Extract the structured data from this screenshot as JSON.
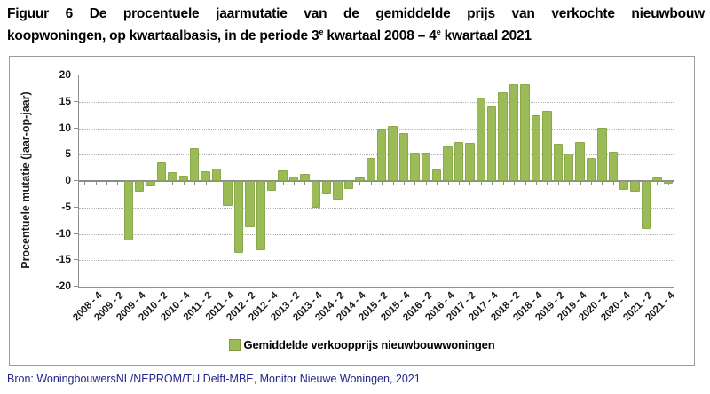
{
  "title": {
    "line1": "Figuur 6 De procentuele jaarmutatie van de gemiddelde prijs van verkochte nieuwbouw",
    "line2_segments": [
      {
        "text": "koopwoningen, op kwartaalbasis, in de periode 3",
        "sup": false
      },
      {
        "text": "e",
        "sup": true
      },
      {
        "text": " kwartaal 2008 – 4",
        "sup": false
      },
      {
        "text": "e",
        "sup": true
      },
      {
        "text": " kwartaal 2021",
        "sup": false
      }
    ]
  },
  "source_note": "Bron: WoningbouwersNL/NEPROM/TU Delft-MBE, Monitor Nieuwe Woningen, 2021",
  "chart_data": {
    "type": "bar",
    "title": "",
    "xlabel": "",
    "ylabel": "Procentuele mutatie (jaar-op-jaar)",
    "ylim": [
      -20,
      20
    ],
    "y_ticks": [
      20,
      15,
      10,
      5,
      0,
      -5,
      -10,
      -15,
      -20
    ],
    "grid": "dotted horizontal at every 5, solid axis at 0",
    "legend_position": "bottom-center",
    "legend_label": "Gemiddelde verkoopprijs nieuwbouwwoningen",
    "bar_color": "#9bbb59",
    "categories": [
      "2008 - 3",
      "2008 - 4",
      "2009 - 1",
      "2009 - 2",
      "2009 - 3",
      "2009 - 4",
      "2010 - 1",
      "2010 - 2",
      "2010 - 3",
      "2010 - 4",
      "2011 - 1",
      "2011 - 2",
      "2011 - 3",
      "2011 - 4",
      "2012 - 1",
      "2012 - 2",
      "2012 - 3",
      "2012 - 4",
      "2013 - 1",
      "2013 - 2",
      "2013 - 3",
      "2013 - 4",
      "2014 - 1",
      "2014 - 2",
      "2014 - 3",
      "2014 - 4",
      "2015 - 1",
      "2015 - 2",
      "2015 - 3",
      "2015 - 4",
      "2016 - 1",
      "2016 - 2",
      "2016 - 3",
      "2016 - 4",
      "2017 - 1",
      "2017 - 2",
      "2017 - 3",
      "2017 - 4",
      "2018 - 1",
      "2018 - 2",
      "2018 - 3",
      "2018 - 4",
      "2019 - 1",
      "2019 - 2",
      "2019 - 3",
      "2019 - 4",
      "2020 - 1",
      "2020 - 2",
      "2020 - 3",
      "2020 - 4",
      "2021 - 1",
      "2021 - 2",
      "2021 - 3",
      "2021 - 4"
    ],
    "values": [
      null,
      null,
      null,
      null,
      -11.2,
      -2.1,
      -1.0,
      3.5,
      1.7,
      1.0,
      6.2,
      1.9,
      2.4,
      -4.7,
      -13.6,
      -8.8,
      -13.1,
      -1.8,
      2.0,
      0.9,
      1.3,
      -5.0,
      -2.5,
      -3.5,
      -1.5,
      0.6,
      4.4,
      10.0,
      10.4,
      9.0,
      5.4,
      5.4,
      2.2,
      6.5,
      7.4,
      7.2,
      15.8,
      14.2,
      16.8,
      18.3,
      18.3,
      12.4,
      13.2,
      7.0,
      5.2,
      7.4,
      4.3,
      10.1,
      5.5,
      -1.6,
      -2.1,
      -9.0,
      0.7,
      -0.5
    ],
    "x_tick_labels": [
      "2008 - 4",
      "2009 - 2",
      "2009 - 4",
      "2010 - 2",
      "2010 - 4",
      "2011 - 2",
      "2011 - 4",
      "2012 - 2",
      "2012 - 4",
      "2013 - 2",
      "2013 - 4",
      "2014 - 2",
      "2014 - 4",
      "2015 - 2",
      "2015 - 4",
      "2016 - 2",
      "2016 - 4",
      "2017 - 2",
      "2017 - 4",
      "2018 - 2",
      "2018 - 4",
      "2019 - 2",
      "2019 - 4",
      "2020 - 2",
      "2020 - 4",
      "2021 - 2",
      "2021 - 4"
    ]
  }
}
